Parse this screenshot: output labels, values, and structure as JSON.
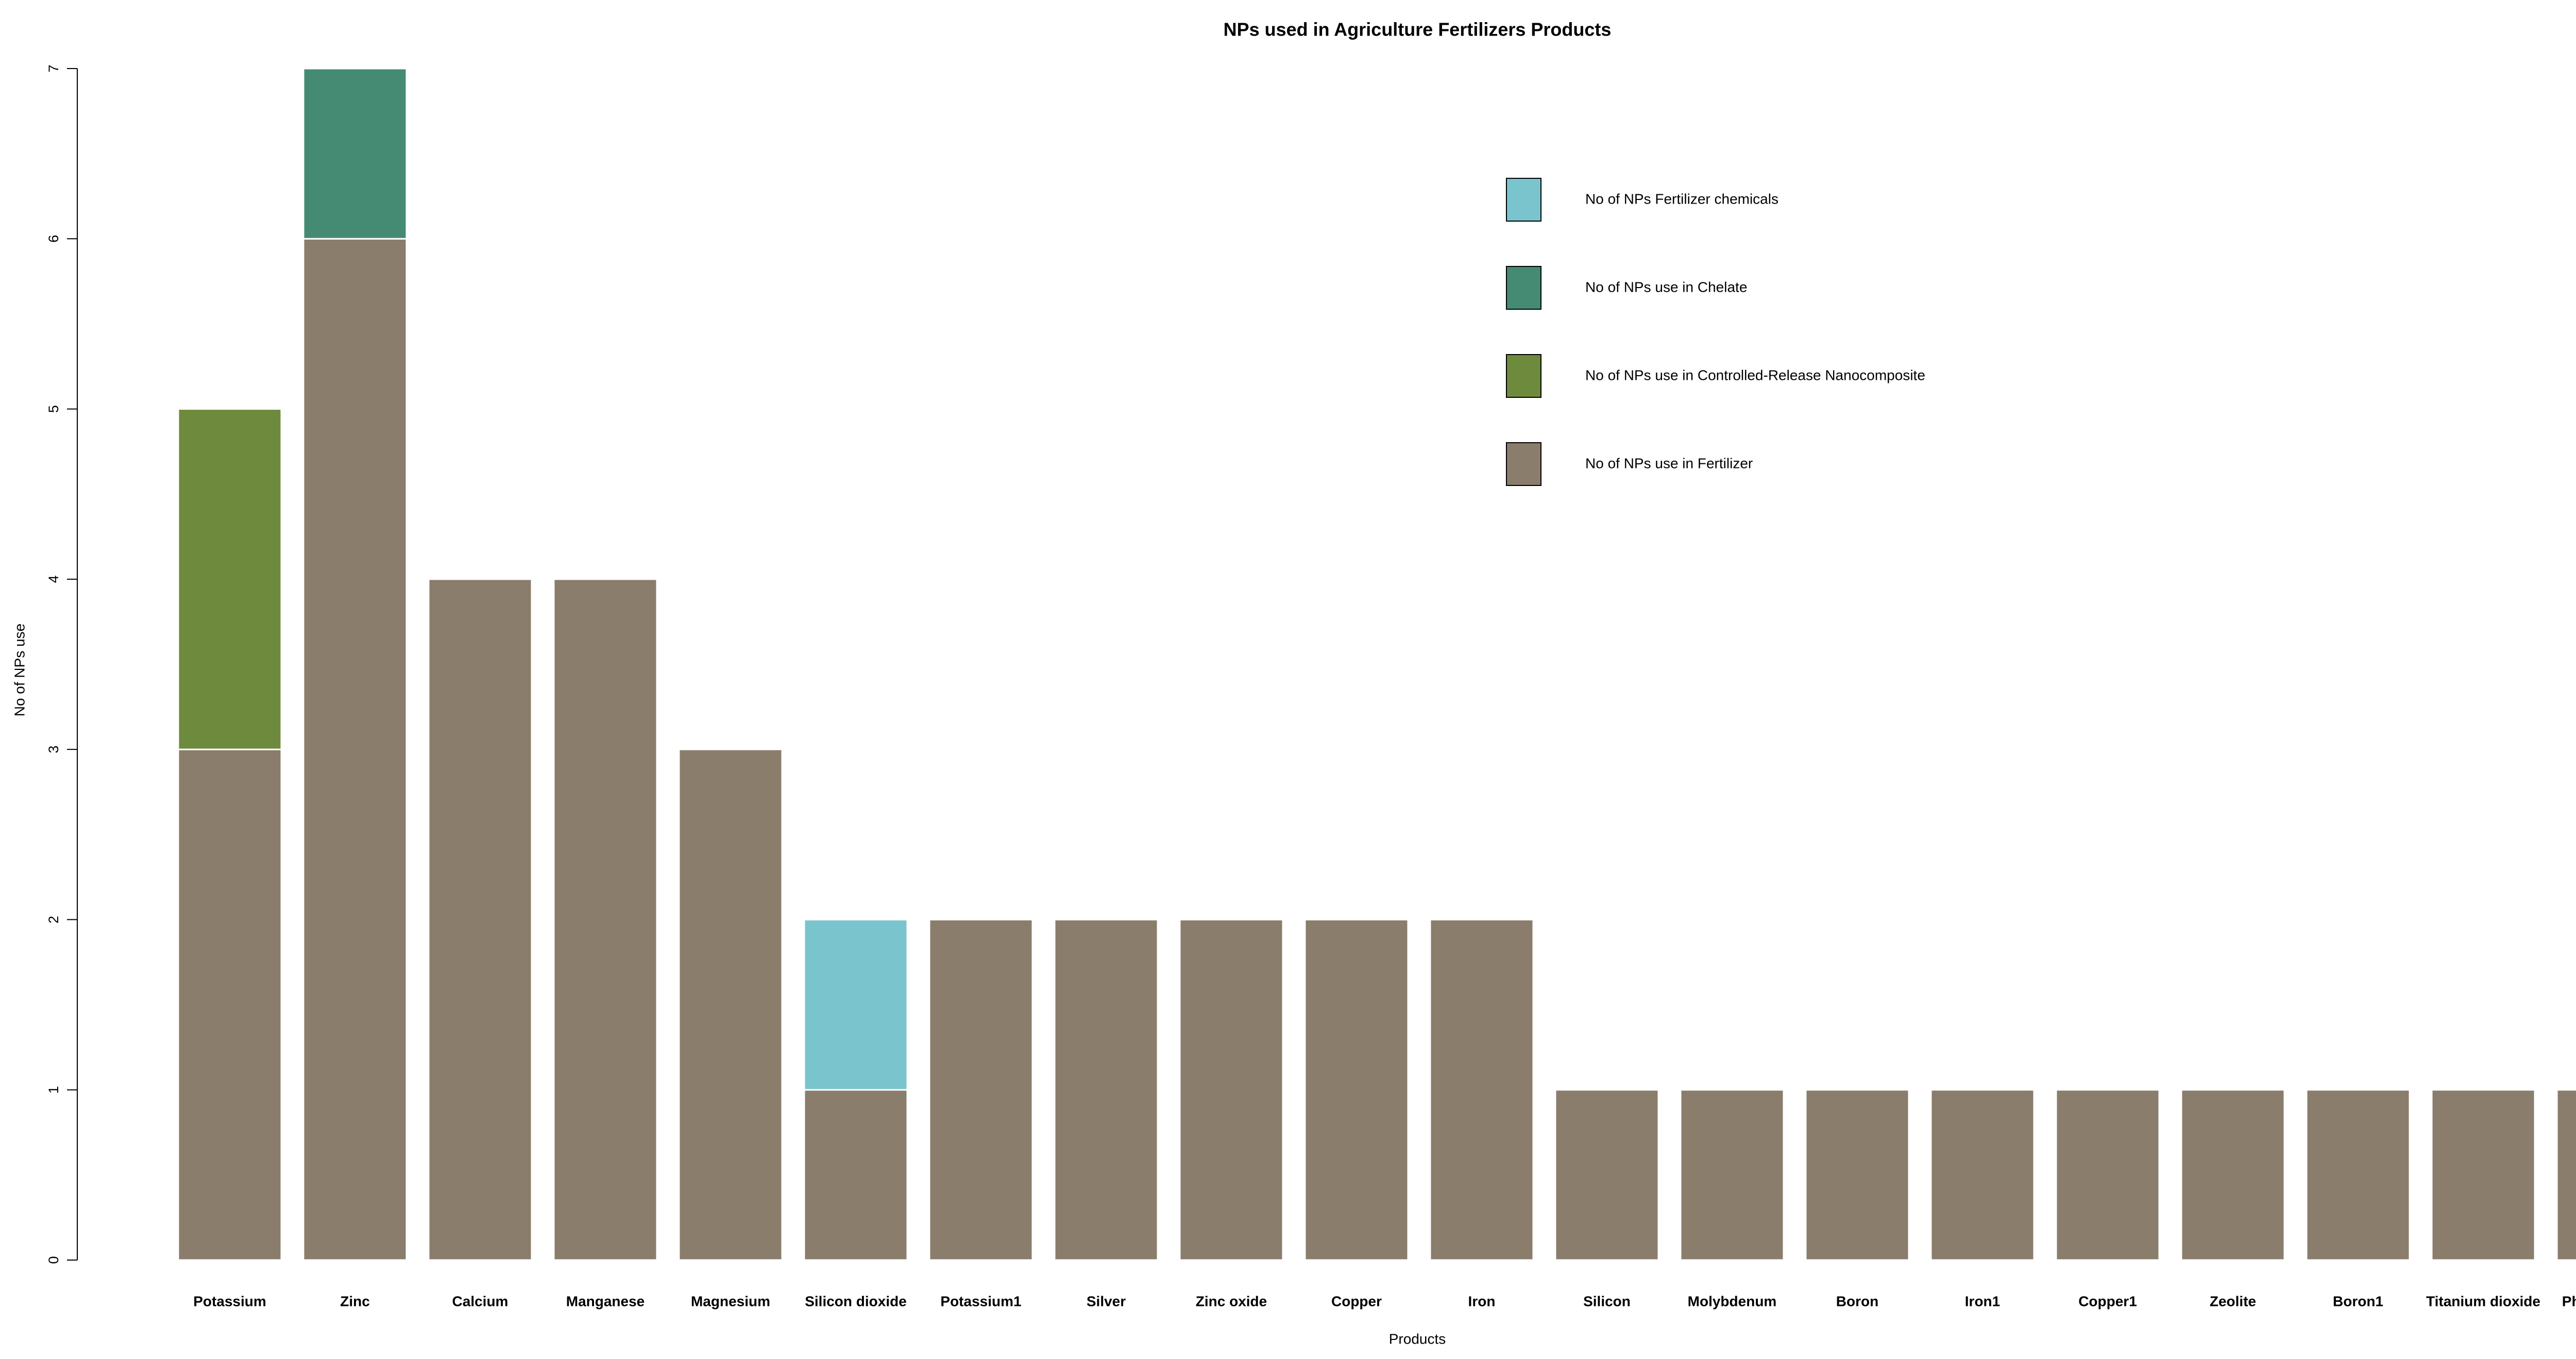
{
  "chart_data": {
    "type": "stacked_bar",
    "title": "NPs used in Agriculture Fertilizers  Products",
    "x_label": "Products",
    "y_label": "No of NPs use",
    "categories": [
      "Potassium",
      "Zinc",
      "Calcium",
      "Manganese",
      "Magnesium",
      "Silicon dioxide",
      "Potassium1",
      "Silver",
      "Zinc oxide",
      "Copper",
      "Iron",
      "Silicon",
      "Molybdenum",
      "Boron",
      "Iron1",
      "Copper1",
      "Zeolite",
      "Boron1",
      "Titanium dioxide",
      "Phosphorous"
    ],
    "series": [
      {
        "name": "No of NPs use in Fertilizer",
        "color": "#8a7d6b",
        "values": [
          3,
          6,
          4,
          4,
          3,
          1,
          2,
          2,
          2,
          2,
          2,
          1,
          1,
          1,
          1,
          1,
          1,
          1,
          1,
          1
        ]
      },
      {
        "name": "No of NPs use in Controlled-Release Nanocomposite",
        "color": "#6e8b3d",
        "values": [
          2,
          0,
          0,
          0,
          0,
          0,
          0,
          0,
          0,
          0,
          0,
          0,
          0,
          0,
          0,
          0,
          0,
          0,
          0,
          0
        ]
      },
      {
        "name": "No of NPs use in Chelate",
        "color": "#458b74",
        "values": [
          0,
          1,
          0,
          0,
          0,
          0,
          0,
          0,
          0,
          0,
          0,
          0,
          0,
          0,
          0,
          0,
          0,
          0,
          0,
          0
        ]
      },
      {
        "name": "No of NPs Fertilizer chemicals",
        "color": "#7ac5cd",
        "values": [
          0,
          0,
          0,
          0,
          0,
          1,
          0,
          0,
          0,
          0,
          0,
          0,
          0,
          0,
          0,
          0,
          0,
          0,
          0,
          0
        ]
      }
    ],
    "ylim": [
      0,
      7
    ],
    "yticks": [
      0,
      1,
      2,
      3,
      4,
      5,
      6,
      7
    ],
    "legend": "top-right",
    "grid": false
  }
}
